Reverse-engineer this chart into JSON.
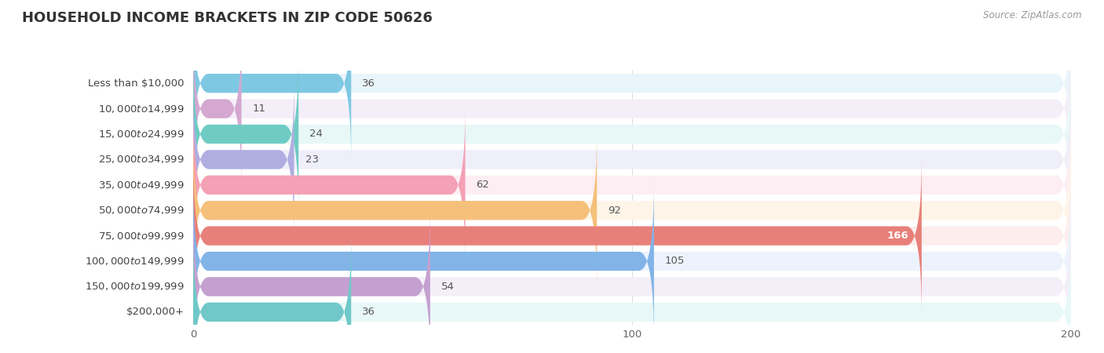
{
  "title": "HOUSEHOLD INCOME BRACKETS IN ZIP CODE 50626",
  "source": "Source: ZipAtlas.com",
  "categories": [
    "Less than $10,000",
    "$10,000 to $14,999",
    "$15,000 to $24,999",
    "$25,000 to $34,999",
    "$35,000 to $49,999",
    "$50,000 to $74,999",
    "$75,000 to $99,999",
    "$100,000 to $149,999",
    "$150,000 to $199,999",
    "$200,000+"
  ],
  "values": [
    36,
    11,
    24,
    23,
    62,
    92,
    166,
    105,
    54,
    36
  ],
  "bar_colors": [
    "#7ec8e3",
    "#d4a8d0",
    "#6eccc4",
    "#b0aee0",
    "#f4a0b5",
    "#f5c07a",
    "#e8807a",
    "#82b4e8",
    "#c4a0d0",
    "#70c8c8"
  ],
  "bg_colors": [
    "#e8f5fb",
    "#f4eef8",
    "#e8f8f6",
    "#efeffa",
    "#fdeef3",
    "#fef5e8",
    "#fdeeed",
    "#edf3fd",
    "#f4eef8",
    "#e8f8f8"
  ],
  "xlim": [
    0,
    200
  ],
  "title_fontsize": 13,
  "label_fontsize": 9.5,
  "value_fontsize": 9.5,
  "background_color": "#ffffff",
  "title_color": "#333333",
  "label_color": "#444444",
  "value_color_dark": "#555555",
  "value_color_light": "#ffffff",
  "grid_color": "#dddddd",
  "source_color": "#999999"
}
